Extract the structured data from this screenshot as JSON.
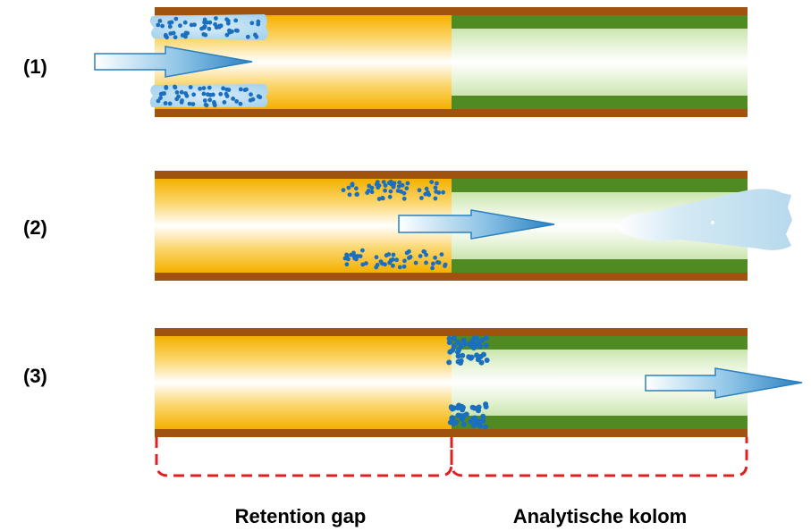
{
  "steps": [
    {
      "label": "(1)"
    },
    {
      "label": "(2)"
    },
    {
      "label": "(3)"
    }
  ],
  "sections": {
    "retention_gap": "Retention gap",
    "analytical_column": "Analytische kolom"
  },
  "colors": {
    "tube_wall": "#a0520f",
    "retention_gap_fill": "#f5b800",
    "column_film": "#4f8a23",
    "column_inner": "#c8e3a6",
    "particles": "#1a6fbf",
    "solvent_film": "#b8dcef",
    "arrow": "#2d87c4",
    "bracket": "#e02020"
  },
  "icons": [
    "flow-arrow-icon",
    "vapor-cloud-icon",
    "particle-icon"
  ]
}
